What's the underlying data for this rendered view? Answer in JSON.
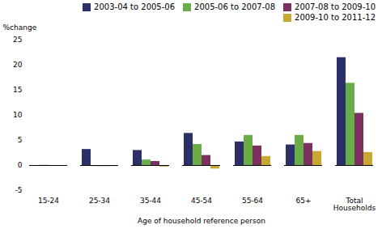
{
  "chart_data": {
    "type": "bar",
    "categories": [
      "15-24",
      "25-34",
      "35-44",
      "45-54",
      "55-64",
      "65+",
      "Total\nHouseholds"
    ],
    "series": [
      {
        "name": "2003-04 to 2005-06",
        "color": "#2d3068",
        "values": [
          0.0,
          3.2,
          3.0,
          6.4,
          4.7,
          4.1,
          21.5
        ]
      },
      {
        "name": "2005-06 to 2007-08",
        "color": "#6aac45",
        "values": [
          0.05,
          -0.2,
          1.1,
          4.2,
          6.0,
          6.0,
          16.4
        ]
      },
      {
        "name": "2007-08 to 2009-10",
        "color": "#7b3060",
        "values": [
          -0.05,
          -0.2,
          0.8,
          2.0,
          3.9,
          4.4,
          10.4
        ]
      },
      {
        "name": "2009-10 to 2011-12",
        "color": "#c8a832",
        "values": [
          -0.1,
          -0.2,
          -0.3,
          -0.7,
          1.8,
          2.8,
          2.6
        ]
      }
    ],
    "ylim": [
      -5,
      25
    ],
    "yticks": [
      -5,
      0,
      5,
      10,
      15,
      20,
      25
    ],
    "ylabel": "%change",
    "xlabel": "Age of household reference person",
    "legend": "upper right",
    "grid": false
  }
}
